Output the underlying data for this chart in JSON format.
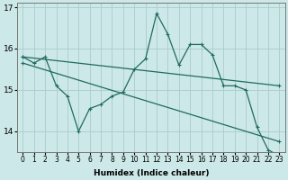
{
  "xlabel": "Humidex (Indice chaleur)",
  "background_color": "#cde8e8",
  "grid_color": "#aacccc",
  "line_color": "#1e6b5e",
  "x_values": [
    0,
    1,
    2,
    3,
    4,
    5,
    6,
    7,
    8,
    9,
    10,
    11,
    12,
    13,
    14,
    15,
    16,
    17,
    18,
    19,
    20,
    21,
    22,
    23
  ],
  "y_main": [
    15.8,
    15.65,
    15.8,
    15.1,
    14.85,
    14.0,
    14.55,
    14.65,
    14.85,
    14.95,
    15.5,
    15.75,
    16.85,
    16.35,
    15.6,
    16.1,
    16.1,
    15.85,
    15.1,
    15.1,
    15.0,
    14.1,
    13.55,
    13.4
  ],
  "y_upper_start": 15.8,
  "y_upper_end": 15.1,
  "y_lower_start": 15.65,
  "y_lower_end": 13.75,
  "x_trend_start": 0,
  "x_trend_end": 23,
  "ylim_min": 13.5,
  "ylim_max": 17.1,
  "yticks": [
    14,
    15,
    16,
    17
  ],
  "xticks": [
    0,
    1,
    2,
    3,
    4,
    5,
    6,
    7,
    8,
    9,
    10,
    11,
    12,
    13,
    14,
    15,
    16,
    17,
    18,
    19,
    20,
    21,
    22,
    23
  ],
  "xlabel_fontsize": 6.5,
  "xlabel_fontweight": "bold",
  "tick_fontsize": 5.5,
  "ytick_fontsize": 6.5,
  "linewidth": 0.9,
  "marker": "+",
  "markersize": 3.5,
  "markeredgewidth": 0.8
}
